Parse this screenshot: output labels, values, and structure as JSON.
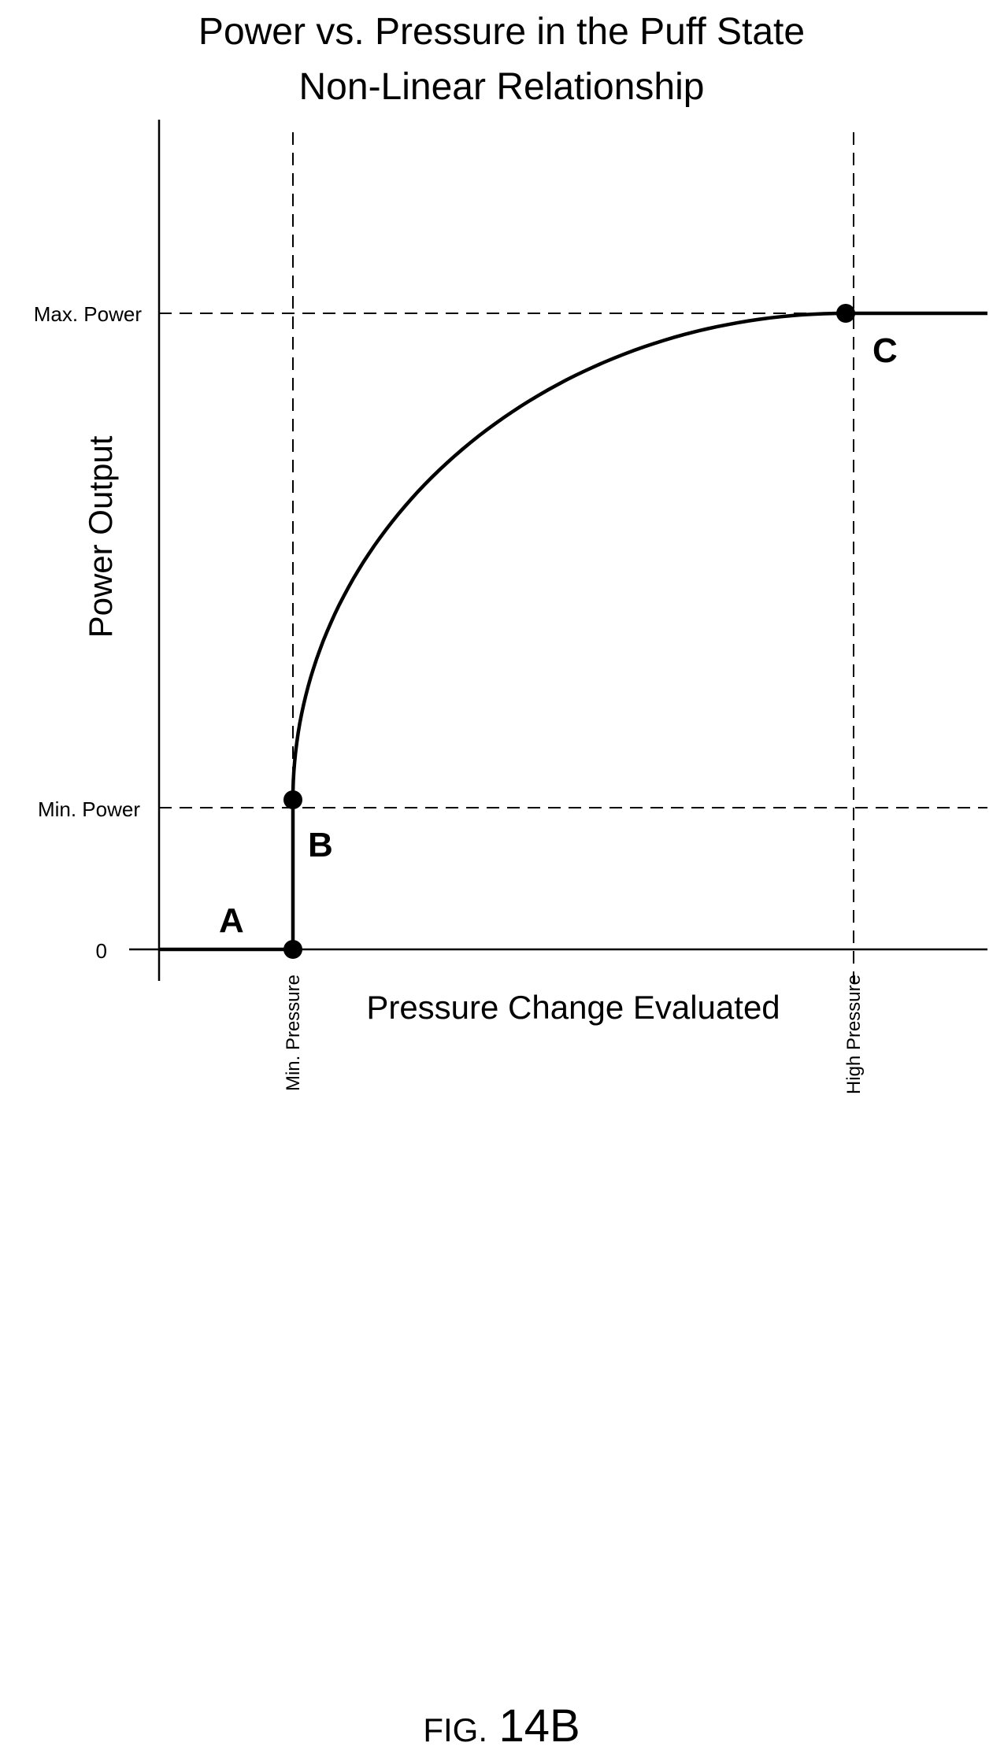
{
  "chart_data": {
    "type": "line",
    "title": "Power vs. Pressure in the Puff State",
    "subtitle": "Non-Linear Relationship",
    "xlabel": "Pressure Change Evaluated",
    "ylabel": "Power Output",
    "x_ticks": [
      "Min. Pressure",
      "High Pressure"
    ],
    "y_ticks": [
      "0",
      "Min. Power",
      "Max. Power"
    ],
    "points": [
      {
        "label": "A",
        "x": "below Min. Pressure",
        "y": "0"
      },
      {
        "label": "B",
        "x": "Min. Pressure",
        "y": "Min. Power"
      },
      {
        "label": "C",
        "x": "High Pressure",
        "y": "Max. Power"
      }
    ],
    "series": [
      {
        "segments": [
          {
            "from": "A",
            "to": "Min. Pressure at 0",
            "shape": "flat at 0"
          },
          {
            "from": "Min. Pressure at 0",
            "to": "B",
            "shape": "vertical step"
          },
          {
            "from": "B",
            "to": "C",
            "shape": "concave increasing curve"
          },
          {
            "from": "C",
            "to": "beyond High Pressure",
            "shape": "flat at Max. Power"
          }
        ]
      }
    ],
    "grid": false,
    "guides": "dashed lines at Min. Pressure, High Pressure, Min. Power, Max. Power"
  },
  "caption": {
    "prefix": "FIG.",
    "number": "14B"
  }
}
